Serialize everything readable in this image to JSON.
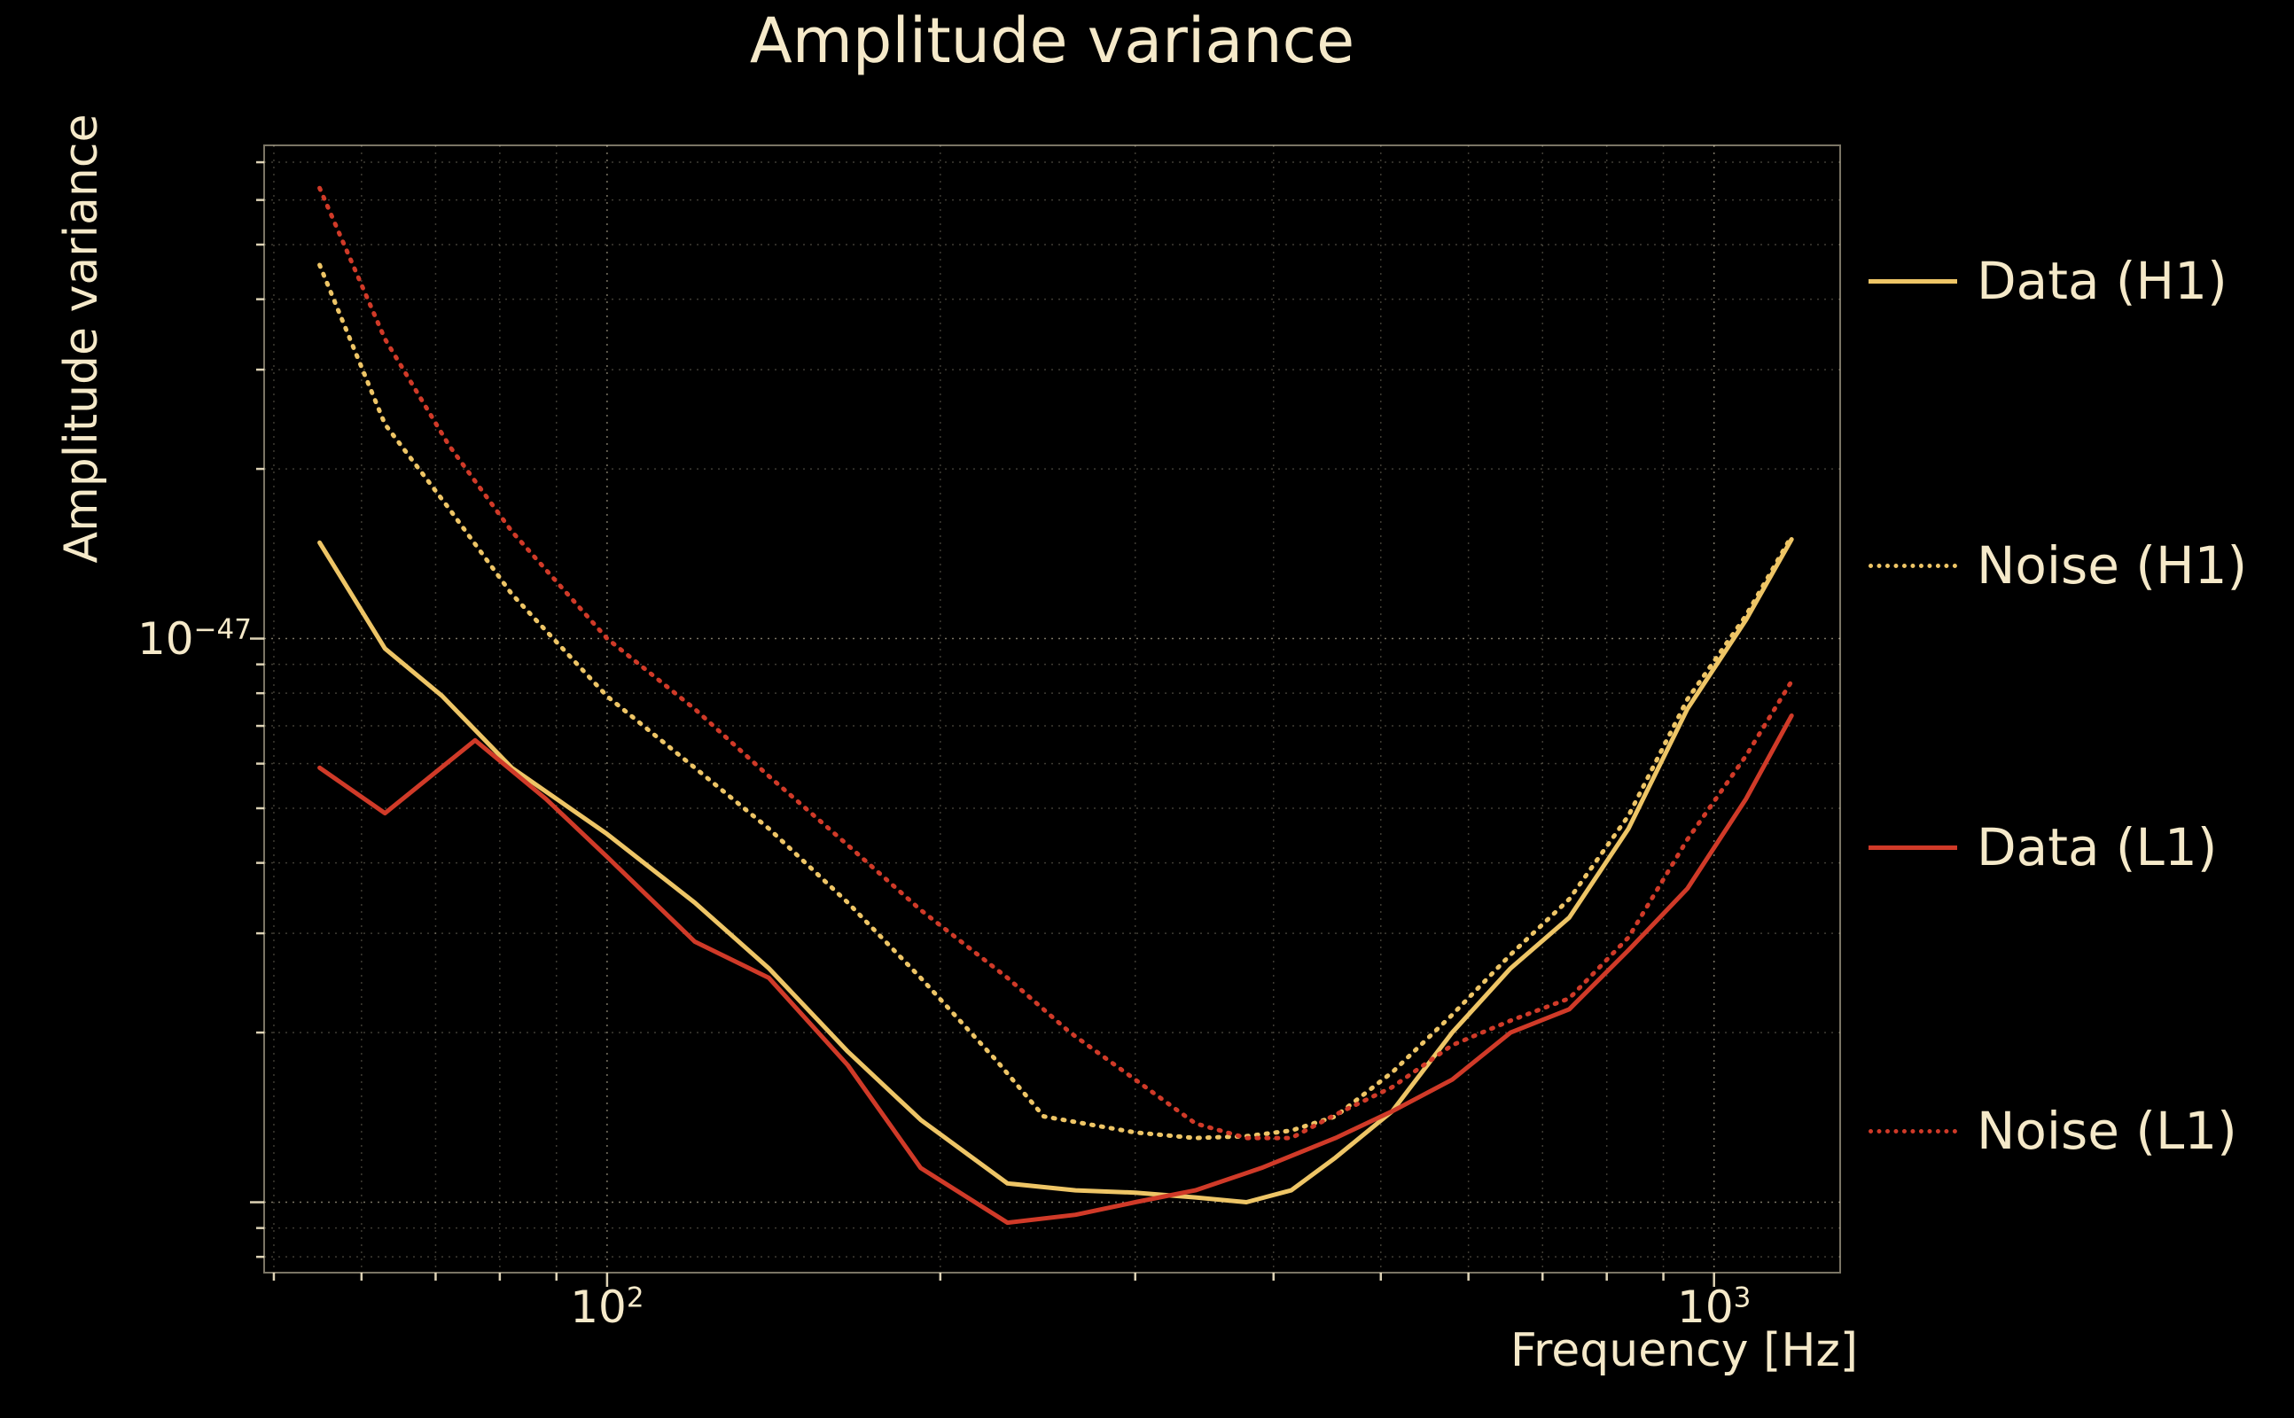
{
  "figure": {
    "background": "#000000",
    "text_color": "#f5e9c9"
  },
  "chart_data": {
    "type": "line",
    "title": "Amplitude variance",
    "xlabel": "Frequency [Hz]",
    "ylabel": "Amplitude variance",
    "xscale": "log",
    "yscale": "log",
    "xlim": [
      49,
      1300
    ],
    "ylim": [
      7.5e-49,
      7.5e-47
    ],
    "grid": true,
    "legend_position": "right-outside",
    "x_ticks": [
      {
        "label": "10^2",
        "base": "10",
        "exp": "2",
        "value": 100
      },
      {
        "label": "10^3",
        "base": "10",
        "exp": "3",
        "value": 1000
      }
    ],
    "y_ticks": [
      {
        "label": "10^-47",
        "base": "10",
        "exp": "−47",
        "value": 1e-47
      }
    ],
    "series": [
      {
        "name": "Data (H1)",
        "color": "#eec566",
        "style": "solid",
        "points": [
          [
            55,
            1.48e-47
          ],
          [
            63,
            9.6e-48
          ],
          [
            71,
            7.9e-48
          ],
          [
            82,
            5.9e-48
          ],
          [
            100,
            4.5e-48
          ],
          [
            120,
            3.4e-48
          ],
          [
            140,
            2.6e-48
          ],
          [
            165,
            1.85e-48
          ],
          [
            192,
            1.4e-48
          ],
          [
            230,
            1.08e-48
          ],
          [
            265,
            1.05e-48
          ],
          [
            300,
            1.04e-48
          ],
          [
            340,
            1.02e-48
          ],
          [
            378,
            1e-48
          ],
          [
            415,
            1.05e-48
          ],
          [
            455,
            1.2e-48
          ],
          [
            512,
            1.45e-48
          ],
          [
            580,
            2e-48
          ],
          [
            655,
            2.6e-48
          ],
          [
            740,
            3.2e-48
          ],
          [
            837,
            4.6e-48
          ],
          [
            946,
            7.5e-48
          ],
          [
            1069,
            1.08e-47
          ],
          [
            1175,
            1.5e-47
          ]
        ]
      },
      {
        "name": "Noise (H1)",
        "color": "#eec566",
        "style": "dotted",
        "points": [
          [
            55,
            4.6e-47
          ],
          [
            63,
            2.4e-47
          ],
          [
            72,
            1.7e-47
          ],
          [
            82,
            1.2e-47
          ],
          [
            100,
            7.9e-48
          ],
          [
            120,
            5.9e-48
          ],
          [
            140,
            4.6e-48
          ],
          [
            165,
            3.4e-48
          ],
          [
            192,
            2.5e-48
          ],
          [
            225,
            1.78e-48
          ],
          [
            248,
            1.42e-48
          ],
          [
            300,
            1.33e-48
          ],
          [
            340,
            1.3e-48
          ],
          [
            378,
            1.31e-48
          ],
          [
            415,
            1.34e-48
          ],
          [
            455,
            1.42e-48
          ],
          [
            512,
            1.7e-48
          ],
          [
            580,
            2.15e-48
          ],
          [
            655,
            2.75e-48
          ],
          [
            740,
            3.45e-48
          ],
          [
            837,
            4.85e-48
          ],
          [
            946,
            7.8e-48
          ],
          [
            1069,
            1.1e-47
          ],
          [
            1175,
            1.52e-47
          ]
        ]
      },
      {
        "name": "Data (L1)",
        "color": "#d03a28",
        "style": "solid",
        "points": [
          [
            55,
            5.9e-48
          ],
          [
            63,
            4.9e-48
          ],
          [
            76,
            6.6e-48
          ],
          [
            88,
            5.2e-48
          ],
          [
            100,
            4.1e-48
          ],
          [
            120,
            2.9e-48
          ],
          [
            140,
            2.5e-48
          ],
          [
            165,
            1.75e-48
          ],
          [
            192,
            1.15e-48
          ],
          [
            230,
            9.2e-49
          ],
          [
            265,
            9.5e-49
          ],
          [
            300,
            1e-48
          ],
          [
            340,
            1.05e-48
          ],
          [
            390,
            1.15e-48
          ],
          [
            455,
            1.3e-48
          ],
          [
            512,
            1.45e-48
          ],
          [
            580,
            1.65e-48
          ],
          [
            655,
            2e-48
          ],
          [
            740,
            2.2e-48
          ],
          [
            837,
            2.8e-48
          ],
          [
            946,
            3.6e-48
          ],
          [
            1069,
            5.2e-48
          ],
          [
            1175,
            7.3e-48
          ]
        ]
      },
      {
        "name": "Noise (L1)",
        "color": "#d03a28",
        "style": "dotted",
        "points": [
          [
            55,
            6.3e-47
          ],
          [
            63,
            3.4e-47
          ],
          [
            72,
            2.2e-47
          ],
          [
            82,
            1.55e-47
          ],
          [
            100,
            1e-47
          ],
          [
            120,
            7.5e-48
          ],
          [
            140,
            5.7e-48
          ],
          [
            165,
            4.3e-48
          ],
          [
            192,
            3.3e-48
          ],
          [
            230,
            2.5e-48
          ],
          [
            262,
            2e-48
          ],
          [
            300,
            1.65e-48
          ],
          [
            340,
            1.38e-48
          ],
          [
            378,
            1.3e-48
          ],
          [
            415,
            1.3e-48
          ],
          [
            455,
            1.43e-48
          ],
          [
            512,
            1.6e-48
          ],
          [
            580,
            1.9e-48
          ],
          [
            655,
            2.1e-48
          ],
          [
            740,
            2.3e-48
          ],
          [
            837,
            2.95e-48
          ],
          [
            946,
            4.4e-48
          ],
          [
            1069,
            6.2e-48
          ],
          [
            1175,
            8.4e-48
          ]
        ]
      }
    ]
  }
}
